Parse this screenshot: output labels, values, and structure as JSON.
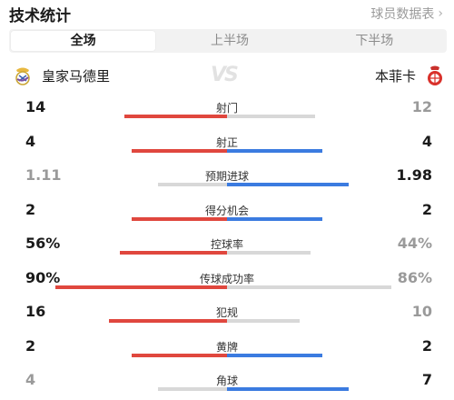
{
  "header": {
    "title": "技术统计",
    "player_stats_link": "球员数据表",
    "chevron_icon": "chevron-right-icon"
  },
  "tabs": [
    {
      "label": "全场",
      "active": true
    },
    {
      "label": "上半场",
      "active": false
    },
    {
      "label": "下半场",
      "active": false
    }
  ],
  "teams": {
    "home": {
      "name": "皇家马德里",
      "logo_icon": "real-madrid-crest-icon"
    },
    "vs_label": "VS",
    "away": {
      "name": "本菲卡",
      "logo_icon": "benfica-crest-icon"
    }
  },
  "colors": {
    "home_bar": "#e0473e",
    "away_bar": "#3b7be0",
    "muted_bar": "#d8d8d8",
    "leading_text": "#1a1a1a",
    "trailing_text": "#9a9a9a"
  },
  "stats": [
    {
      "label": "射门",
      "home": "14",
      "away": "12",
      "home_ratio": 0.54,
      "away_ratio": 0.46,
      "leader": "home"
    },
    {
      "label": "射正",
      "home": "4",
      "away": "4",
      "home_ratio": 0.5,
      "away_ratio": 0.5,
      "leader": "both"
    },
    {
      "label": "预期进球",
      "home": "1.11",
      "away": "1.98",
      "home_ratio": 0.36,
      "away_ratio": 0.64,
      "leader": "away"
    },
    {
      "label": "得分机会",
      "home": "2",
      "away": "2",
      "home_ratio": 0.5,
      "away_ratio": 0.5,
      "leader": "both"
    },
    {
      "label": "控球率",
      "home": "56%",
      "away": "44%",
      "home_ratio": 0.56,
      "away_ratio": 0.44,
      "leader": "home"
    },
    {
      "label": "传球成功率",
      "home": "90%",
      "away": "86%",
      "home_ratio": 0.9,
      "away_ratio": 0.86,
      "leader": "home"
    },
    {
      "label": "犯规",
      "home": "16",
      "away": "10",
      "home_ratio": 0.62,
      "away_ratio": 0.38,
      "leader": "home"
    },
    {
      "label": "黄牌",
      "home": "2",
      "away": "2",
      "home_ratio": 0.5,
      "away_ratio": 0.5,
      "leader": "both"
    },
    {
      "label": "角球",
      "home": "4",
      "away": "7",
      "home_ratio": 0.36,
      "away_ratio": 0.64,
      "leader": "away"
    }
  ]
}
